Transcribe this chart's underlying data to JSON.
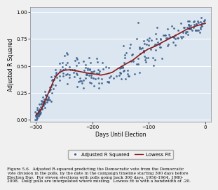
{
  "xlim": [
    -310,
    10
  ],
  "ylim": [
    -0.02,
    1.05
  ],
  "xticks": [
    -300,
    -200,
    -100,
    0
  ],
  "yticks": [
    0,
    0.25,
    0.5,
    0.75,
    1
  ],
  "xlabel": "Days Until Election",
  "ylabel": "Adjusted R Squared",
  "scatter_color": "#3a5f8a",
  "scatter_marker": "o",
  "scatter_size": 4,
  "line_color": "#8b1a1a",
  "line_width": 1.2,
  "legend_labels": [
    "Adjusted R Squared",
    "Lowess Fit"
  ],
  "plot_bg_color": "#dce6f0",
  "fig_bg_color": "#f0f0f0",
  "grid_color": "#ffffff",
  "caption": "Figure 5.6.  Adjusted R-squared predicting the Democratic vote from the Democratic\nvote division in the polls, by the date in the campaign timeline starting 300 days before\nElection Day.  For eleven elections with polls going back 300 days, 1956-1964, 1980-\n2008.  Daily polls are interpolated where missing.  Lowess fit is with a bandwidth of .20.",
  "lowess_points_x": [
    -300,
    -290,
    -280,
    -272,
    -265,
    -258,
    -250,
    -240,
    -228,
    -215,
    -205,
    -195,
    -185,
    -175,
    -165,
    -155,
    -142,
    -128,
    -115,
    -102,
    -90,
    -78,
    -65,
    -50,
    -35,
    -20,
    -8,
    0
  ],
  "lowess_points_y": [
    0.04,
    0.1,
    0.22,
    0.32,
    0.4,
    0.44,
    0.46,
    0.465,
    0.455,
    0.44,
    0.43,
    0.425,
    0.415,
    0.425,
    0.44,
    0.475,
    0.515,
    0.555,
    0.61,
    0.655,
    0.68,
    0.715,
    0.75,
    0.79,
    0.835,
    0.865,
    0.885,
    0.895
  ],
  "seed": 42
}
